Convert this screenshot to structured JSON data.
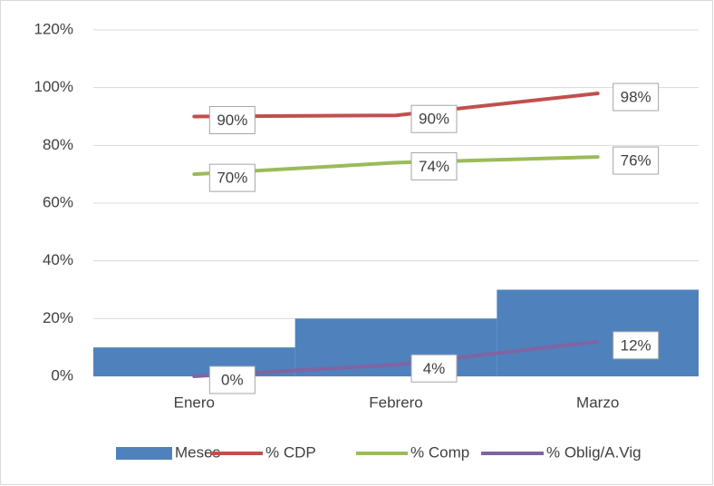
{
  "chart_data": {
    "type": "bar-line",
    "categories": [
      "Enero",
      "Febrero",
      "Marzo"
    ],
    "series": [
      {
        "name": "Meses",
        "type": "bar",
        "color": "#4f81bd",
        "values": [
          10,
          20,
          30
        ]
      },
      {
        "name": "% CDP",
        "type": "line",
        "color": "#c0504d",
        "values": [
          90,
          90.4,
          98
        ],
        "value_labels": [
          "90%",
          "90%",
          "98%"
        ]
      },
      {
        "name": "% Comp",
        "type": "line",
        "color": "#9bbb59",
        "values": [
          70,
          74,
          76
        ],
        "value_labels": [
          "70%",
          "74%",
          "76%"
        ]
      },
      {
        "name": "% Oblig/A.Vig",
        "type": "line",
        "color": "#8064a2",
        "values": [
          0,
          4,
          12
        ],
        "value_labels": [
          "0%",
          "4%",
          "12%"
        ]
      }
    ],
    "ylim": [
      0,
      120
    ],
    "yticks": [
      {
        "value": 0,
        "label": "0%"
      },
      {
        "value": 20,
        "label": "20%"
      },
      {
        "value": 40,
        "label": "40%"
      },
      {
        "value": 60,
        "label": "60%"
      },
      {
        "value": 80,
        "label": "80%"
      },
      {
        "value": 100,
        "label": "100%"
      },
      {
        "value": 120,
        "label": "120%"
      }
    ],
    "grid": true,
    "legend": "bottom"
  }
}
